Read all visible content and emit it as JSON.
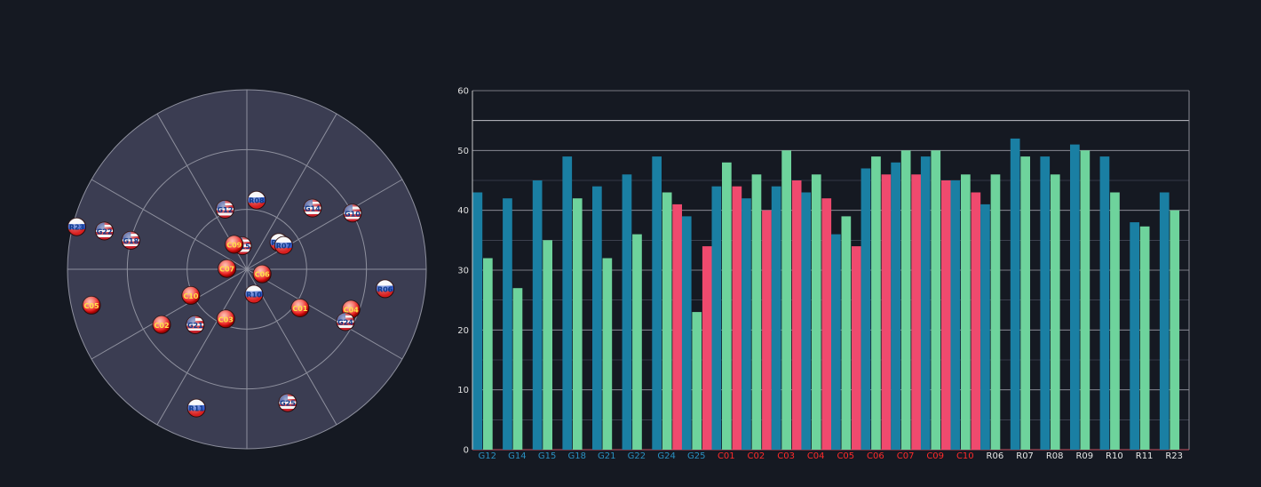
{
  "colors": {
    "background": "#151922",
    "skyplot_fill": "#3b3d52",
    "grid_line": "#8e909e",
    "gps": "#1a7fa3",
    "gps_label": "#2a8fc0",
    "glonass": "#6ed39c",
    "beidou": "#ef4a6e",
    "beidou_label": "#ff2a2a",
    "glonass_label": "#e6e6e6",
    "axis": "#c8c8c8",
    "text": "#e0e0e0"
  },
  "skyplot": {
    "satellites": [
      {
        "id": "R08",
        "flag": "russia",
        "azimuth": 8,
        "elevation": 55
      },
      {
        "id": "G12",
        "flag": "usa",
        "azimuth": 340,
        "elevation": 58
      },
      {
        "id": "G14",
        "flag": "usa",
        "azimuth": 47,
        "elevation": 45
      },
      {
        "id": "G15",
        "flag": "usa",
        "azimuth": 349,
        "elevation": 78
      },
      {
        "id": "R09",
        "flag": "russia",
        "azimuth": 50,
        "elevation": 69
      },
      {
        "id": "R07",
        "flag": "russia",
        "azimuth": 57,
        "elevation": 68
      },
      {
        "id": "G22",
        "flag": "usa",
        "azimuth": 285,
        "elevation": 16
      },
      {
        "id": "G18",
        "flag": "usa",
        "azimuth": 284,
        "elevation": 30
      },
      {
        "id": "C09",
        "flag": "china",
        "azimuth": 333,
        "elevation": 76
      },
      {
        "id": "C07",
        "flag": "china",
        "azimuth": 272,
        "elevation": 80
      },
      {
        "id": "C06",
        "flag": "china",
        "azimuth": 107,
        "elevation": 82
      },
      {
        "id": "C05",
        "flag": "china",
        "azimuth": 257,
        "elevation": 10
      },
      {
        "id": "C10",
        "flag": "china",
        "azimuth": 245,
        "elevation": 59
      },
      {
        "id": "C02",
        "flag": "china",
        "azimuth": 237,
        "elevation": 39
      },
      {
        "id": "G21",
        "flag": "usa",
        "azimuth": 223,
        "elevation": 52
      },
      {
        "id": "R10",
        "flag": "russia",
        "azimuth": 164,
        "elevation": 77
      },
      {
        "id": "C03",
        "flag": "china",
        "azimuth": 203,
        "elevation": 63
      },
      {
        "id": "C01",
        "flag": "china",
        "azimuth": 126,
        "elevation": 57
      },
      {
        "id": "C04",
        "flag": "china",
        "azimuth": 111,
        "elevation": 34
      },
      {
        "id": "G24",
        "flag": "usa",
        "azimuth": 118,
        "elevation": 34
      },
      {
        "id": "R06",
        "flag": "russia",
        "azimuth": 98,
        "elevation": 20
      },
      {
        "id": "R11",
        "flag": "russia",
        "azimuth": 200,
        "elevation": 16
      },
      {
        "id": "G25",
        "flag": "usa",
        "azimuth": 163,
        "elevation": 20
      },
      {
        "id": "R23",
        "flag": "russia",
        "azimuth": 284,
        "elevation": 2
      },
      {
        "id": "G10",
        "flag": "usa",
        "azimuth": 62,
        "elevation": 30
      }
    ]
  },
  "chart_data": {
    "type": "bar",
    "title": "",
    "xlabel": "",
    "ylabel": "",
    "ylim": [
      0,
      60
    ],
    "yticks": [
      0,
      10,
      20,
      30,
      40,
      50,
      60
    ],
    "grid": true,
    "groups": [
      {
        "label": "G12",
        "system": "gps",
        "values": [
          43,
          32
        ]
      },
      {
        "label": "G14",
        "system": "gps",
        "values": [
          42,
          27
        ]
      },
      {
        "label": "G15",
        "system": "gps",
        "values": [
          45,
          35
        ]
      },
      {
        "label": "G18",
        "system": "gps",
        "values": [
          49,
          42
        ]
      },
      {
        "label": "G21",
        "system": "gps",
        "values": [
          44,
          32
        ]
      },
      {
        "label": "G22",
        "system": "gps",
        "values": [
          46,
          36
        ]
      },
      {
        "label": "G24",
        "system": "gps",
        "values": [
          49,
          43,
          41
        ]
      },
      {
        "label": "G25",
        "system": "gps",
        "values": [
          39,
          23,
          34
        ]
      },
      {
        "label": "C01",
        "system": "beidou",
        "values": [
          44,
          48,
          44
        ]
      },
      {
        "label": "C02",
        "system": "beidou",
        "values": [
          42,
          46,
          40
        ]
      },
      {
        "label": "C03",
        "system": "beidou",
        "values": [
          44,
          50,
          45
        ]
      },
      {
        "label": "C04",
        "system": "beidou",
        "values": [
          43,
          46,
          42
        ]
      },
      {
        "label": "C05",
        "system": "beidou",
        "values": [
          36,
          39,
          34
        ]
      },
      {
        "label": "C06",
        "system": "beidou",
        "values": [
          47,
          49,
          46
        ]
      },
      {
        "label": "C07",
        "system": "beidou",
        "values": [
          48,
          50,
          46
        ]
      },
      {
        "label": "C09",
        "system": "beidou",
        "values": [
          49,
          50,
          45
        ]
      },
      {
        "label": "C10",
        "system": "beidou",
        "values": [
          45,
          46,
          43
        ]
      },
      {
        "label": "R06",
        "system": "glonass",
        "values": [
          41,
          46
        ]
      },
      {
        "label": "R07",
        "system": "glonass",
        "values": [
          52,
          49
        ]
      },
      {
        "label": "R08",
        "system": "glonass",
        "values": [
          49,
          46
        ]
      },
      {
        "label": "R09",
        "system": "glonass",
        "values": [
          51,
          50
        ]
      },
      {
        "label": "R10",
        "system": "glonass",
        "values": [
          49,
          43
        ]
      },
      {
        "label": "R11",
        "system": "glonass",
        "values": [
          38,
          37.3
        ]
      },
      {
        "label": "R23",
        "system": "glonass",
        "values": [
          43,
          40
        ]
      }
    ],
    "reference_lines": [
      55
    ]
  }
}
